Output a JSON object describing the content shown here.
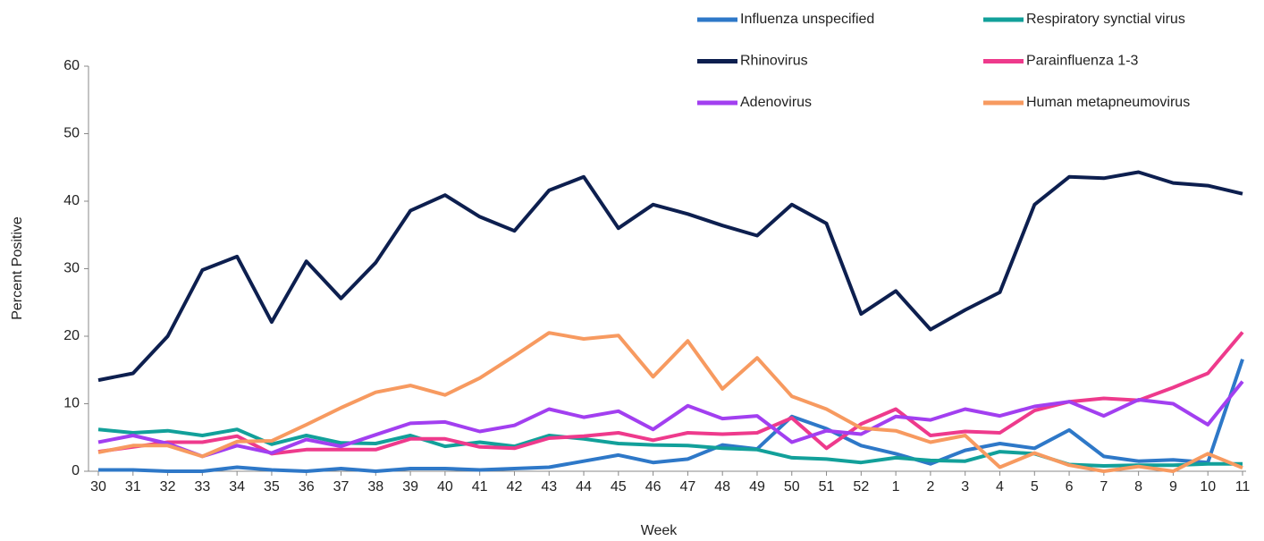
{
  "chart_data": {
    "type": "line",
    "x_label": "Week",
    "y_label": "Percent Positive",
    "categories": [
      "30",
      "31",
      "32",
      "33",
      "34",
      "35",
      "36",
      "37",
      "38",
      "39",
      "40",
      "41",
      "42",
      "43",
      "44",
      "45",
      "46",
      "47",
      "48",
      "49",
      "50",
      "51",
      "52",
      "1",
      "2",
      "3",
      "4",
      "5",
      "6",
      "7",
      "8",
      "9",
      "10",
      "11"
    ],
    "ylim": [
      0,
      60
    ],
    "yticks": [
      0,
      10,
      20,
      30,
      40,
      50,
      60
    ],
    "grid": false,
    "legend": "top-right",
    "series": [
      {
        "name": "Influenza unspecified",
        "color": "#2e78c8",
        "values": [
          0.2,
          0.2,
          0,
          0,
          0.6,
          0.2,
          0,
          0.4,
          0,
          0.4,
          0.4,
          0.2,
          0.4,
          0.6,
          1.5,
          2.4,
          1.3,
          1.8,
          3.9,
          3.3,
          8.1,
          6.3,
          3.8,
          2.6,
          1.1,
          3.1,
          4.1,
          3.4,
          6.1,
          2.2,
          1.5,
          1.7,
          1.3,
          16.6
        ]
      },
      {
        "name": "Respiratory synctial virus",
        "color": "#12a09a",
        "values": [
          6.2,
          5.7,
          6,
          5.3,
          6.2,
          4,
          5.3,
          4.2,
          4.1,
          5.3,
          3.7,
          4.3,
          3.7,
          5.3,
          4.8,
          4.1,
          3.9,
          3.8,
          3.4,
          3.2,
          2,
          1.8,
          1.3,
          2,
          1.6,
          1.5,
          2.9,
          2.6,
          1,
          0.8,
          0.9,
          0.9,
          1.1,
          1.1
        ]
      },
      {
        "name": "Rhinovirus",
        "color": "#0d1f4f",
        "values": [
          13.5,
          14.5,
          20,
          29.8,
          31.8,
          22.1,
          31.1,
          25.6,
          30.9,
          38.6,
          40.9,
          37.7,
          35.6,
          41.6,
          43.6,
          36,
          39.5,
          38.1,
          36.4,
          34.9,
          39.5,
          36.7,
          23.3,
          26.7,
          21,
          23.9,
          26.5,
          39.5,
          43.6,
          43.4,
          44.3,
          42.7,
          42.3,
          41.1
        ]
      },
      {
        "name": "Parainfluenza 1-3",
        "color": "#ee3a8c",
        "values": [
          2.9,
          3.6,
          4.3,
          4.3,
          5.2,
          2.6,
          3.2,
          3.2,
          3.2,
          4.8,
          4.8,
          3.6,
          3.4,
          4.9,
          5.2,
          5.7,
          4.6,
          5.7,
          5.5,
          5.7,
          7.9,
          3.4,
          7,
          9.2,
          5.3,
          5.9,
          5.7,
          9,
          10.3,
          10.8,
          10.5,
          12.4,
          14.5,
          20.6
        ]
      },
      {
        "name": "Adenovirus",
        "color": "#a23ff0",
        "values": [
          4.3,
          5.3,
          4.1,
          2.2,
          3.8,
          2.7,
          4.7,
          3.7,
          5.4,
          7.1,
          7.3,
          5.9,
          6.8,
          9.2,
          8,
          8.9,
          6.2,
          9.7,
          7.8,
          8.2,
          4.3,
          6,
          5.5,
          8.1,
          7.6,
          9.2,
          8.2,
          9.6,
          10.3,
          8.2,
          10.6,
          10,
          6.9,
          13.3
        ]
      },
      {
        "name": "Human metapneumovirus",
        "color": "#f79a60",
        "values": [
          2.8,
          3.8,
          3.8,
          2.2,
          4.4,
          4.5,
          6.9,
          9.4,
          11.7,
          12.7,
          11.3,
          13.8,
          17.1,
          20.5,
          19.6,
          20.1,
          14,
          19.3,
          12.2,
          16.8,
          11.1,
          9.2,
          6.4,
          6,
          4.3,
          5.3,
          0.6,
          2.7,
          0.9,
          0,
          0.7,
          0,
          2.6,
          0.5
        ]
      }
    ]
  }
}
